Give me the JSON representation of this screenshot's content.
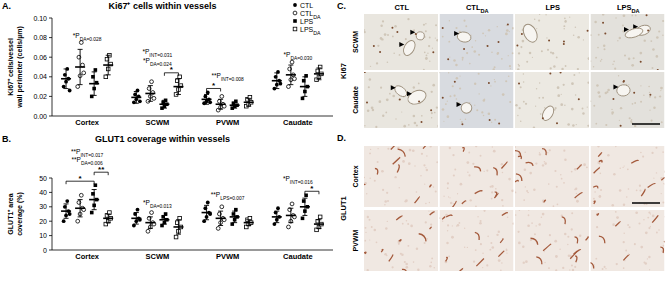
{
  "chart_data": [
    {
      "type": "dot",
      "panel": "A.",
      "title": "Ki67⁺ cells within vessels",
      "ylabel": [
        "Ki67⁺ cells/vessel",
        "wall perimeter (cells/µm)"
      ],
      "categories": [
        "Cortex",
        "SCWM",
        "PVWM",
        "Caudate"
      ],
      "ylim": [
        0,
        0.1
      ],
      "yticks": [
        {
          "value": 0,
          "label": "0.00"
        },
        {
          "value": 0.02,
          "label": "0.02"
        },
        {
          "value": 0.04,
          "label": "0.04"
        },
        {
          "value": 0.06,
          "label": "0.06"
        },
        {
          "value": 0.08,
          "label": "0.08"
        },
        {
          "value": 0.1,
          "label": "0.10"
        }
      ],
      "grid": false,
      "legend": "upper right",
      "series": [
        {
          "name": "CTL",
          "color": "#000000",
          "marker": "circle",
          "values": [
            0.038,
            0.019,
            0.017,
            0.036
          ],
          "errors": [
            0.01,
            0.006,
            0.005,
            0.008
          ],
          "points": [
            [
              0.03,
              0.035,
              0.038,
              0.042,
              0.048,
              0.026
            ],
            [
              0.014,
              0.017,
              0.02,
              0.022,
              0.026,
              0.015
            ],
            [
              0.013,
              0.015,
              0.017,
              0.02,
              0.024,
              0.014
            ],
            [
              0.028,
              0.032,
              0.036,
              0.04,
              0.045,
              0.033
            ]
          ]
        },
        {
          "name": "CTL",
          "subscript": "DA",
          "color": "#000000",
          "marker": "circle-open",
          "values": [
            0.05,
            0.023,
            0.012,
            0.042
          ],
          "errors": [
            0.018,
            0.008,
            0.005,
            0.01
          ],
          "points": [
            [
              0.03,
              0.041,
              0.052,
              0.06,
              0.075,
              0.044
            ],
            [
              0.015,
              0.02,
              0.024,
              0.028,
              0.035,
              0.018
            ],
            [
              0.006,
              0.009,
              0.012,
              0.015,
              0.02,
              0.01
            ],
            [
              0.03,
              0.037,
              0.042,
              0.048,
              0.055,
              0.038
            ]
          ]
        },
        {
          "name": "LPS",
          "color": "#000000",
          "marker": "square",
          "values": [
            0.033,
            0.012,
            0.011,
            0.03
          ],
          "errors": [
            0.012,
            0.004,
            0.003,
            0.01
          ],
          "points": [
            [
              0.02,
              0.028,
              0.034,
              0.04,
              0.047
            ],
            [
              0.008,
              0.01,
              0.012,
              0.014,
              0.016
            ],
            [
              0.008,
              0.01,
              0.011,
              0.013,
              0.015
            ],
            [
              0.018,
              0.025,
              0.03,
              0.036,
              0.041
            ]
          ]
        },
        {
          "name": "LPS",
          "subscript": "DA",
          "color": "#000000",
          "marker": "square-open",
          "values": [
            0.052,
            0.03,
            0.014,
            0.043
          ],
          "errors": [
            0.01,
            0.008,
            0.004,
            0.006
          ],
          "points": [
            [
              0.04,
              0.048,
              0.053,
              0.058,
              0.062
            ],
            [
              0.022,
              0.027,
              0.031,
              0.036,
              0.04
            ],
            [
              0.01,
              0.012,
              0.014,
              0.017,
              0.019
            ],
            [
              0.037,
              0.04,
              0.043,
              0.046,
              0.05
            ]
          ]
        }
      ],
      "annotations": [
        {
          "category": "Cortex",
          "text": "*P",
          "subscript": "DA=0.028"
        },
        {
          "category": "SCWM",
          "text": "*P",
          "subscript": "INT=0.031"
        },
        {
          "category": "SCWM",
          "text": "*P",
          "subscript": "DA=0.024"
        },
        {
          "category": "PVWM",
          "text": "**P",
          "subscript": "INT=0.008"
        },
        {
          "category": "Caudate",
          "text": "*P",
          "subscript": "DA=0.030"
        }
      ],
      "brackets": [
        {
          "category": "SCWM",
          "from": 2,
          "to": 3,
          "text": "*"
        },
        {
          "category": "PVWM",
          "from": 0,
          "to": 1,
          "text": "*"
        }
      ]
    },
    {
      "type": "dot",
      "panel": "B.",
      "title": "GLUT1 coverage within vessels",
      "ylabel": [
        "GLUT1⁺ area",
        "coverage (%)"
      ],
      "categories": [
        "Cortex",
        "SCWM",
        "PVWM",
        "Caudate"
      ],
      "ylim": [
        0,
        50
      ],
      "yticks": [
        0,
        10,
        20,
        30,
        40,
        50
      ],
      "grid": false,
      "series": [
        {
          "name": "CTL",
          "color": "#000000",
          "marker": "circle",
          "values": [
            27,
            22,
            26,
            23
          ],
          "errors": [
            5,
            4,
            5,
            4
          ],
          "points": [
            [
              20,
              24,
              27,
              30,
              34,
              25
            ],
            [
              17,
              20,
              22,
              25,
              28,
              21
            ],
            [
              20,
              23,
              26,
              29,
              33,
              25
            ],
            [
              18,
              21,
              23,
              26,
              29
            ]
          ]
        },
        {
          "name": "CTL",
          "subscript": "DA",
          "color": "#000000",
          "marker": "circle-open",
          "values": [
            29,
            19,
            22,
            24
          ],
          "errors": [
            6,
            4,
            5,
            5
          ],
          "points": [
            [
              20,
              25,
              29,
              33,
              38,
              28
            ],
            [
              13,
              16,
              19,
              22,
              26,
              18
            ],
            [
              15,
              19,
              22,
              25,
              30,
              21
            ],
            [
              16,
              20,
              24,
              28,
              32,
              23
            ]
          ]
        },
        {
          "name": "LPS",
          "color": "#000000",
          "marker": "square",
          "values": [
            35,
            21,
            23,
            30
          ],
          "errors": [
            7,
            3,
            4,
            6
          ],
          "points": [
            [
              26,
              31,
              35,
              39,
              45
            ],
            [
              17,
              19,
              21,
              23,
              25
            ],
            [
              18,
              21,
              23,
              25,
              28
            ],
            [
              22,
              27,
              30,
              34,
              38
            ]
          ]
        },
        {
          "name": "LPS",
          "subscript": "DA",
          "color": "#000000",
          "marker": "square-open",
          "values": [
            22,
            16,
            19,
            18
          ],
          "errors": [
            3,
            5,
            2,
            3
          ],
          "points": [
            [
              18,
              20,
              22,
              24,
              26
            ],
            [
              9,
              13,
              16,
              19,
              22
            ],
            [
              16,
              18,
              19,
              21,
              22
            ],
            [
              14,
              16,
              18,
              20,
              23
            ]
          ]
        }
      ],
      "annotations": [
        {
          "category": "Cortex",
          "text": "**P",
          "subscript": "INT=0.017"
        },
        {
          "category": "Cortex",
          "text": "**P",
          "subscript": "DA=0.006"
        },
        {
          "category": "SCWM",
          "text": "*P",
          "subscript": "DA=0.013"
        },
        {
          "category": "PVWM",
          "text": "**P",
          "subscript": "LPS=0.007"
        },
        {
          "category": "Caudate",
          "text": "*P",
          "subscript": "INT=0.016"
        }
      ],
      "brackets": [
        {
          "category": "Cortex",
          "from": 0,
          "to": 2,
          "text": "*"
        },
        {
          "category": "Cortex",
          "from": 2,
          "to": 3,
          "text": "**"
        },
        {
          "category": "Caudate",
          "from": 2,
          "to": 3,
          "text": "*"
        }
      ]
    }
  ],
  "micrographs": [
    {
      "panel": "C.",
      "stain": "Ki67",
      "columns": [
        {
          "text": "CTL"
        },
        {
          "text": "CTL",
          "subscript": "DA"
        },
        {
          "text": "LPS"
        },
        {
          "text": "LPS",
          "subscript": "DA"
        }
      ],
      "rows": [
        "SCWM",
        "Caudate"
      ]
    },
    {
      "panel": "D.",
      "stain": "GLUT1",
      "rows": [
        "Cortex",
        "PVWM"
      ]
    }
  ]
}
